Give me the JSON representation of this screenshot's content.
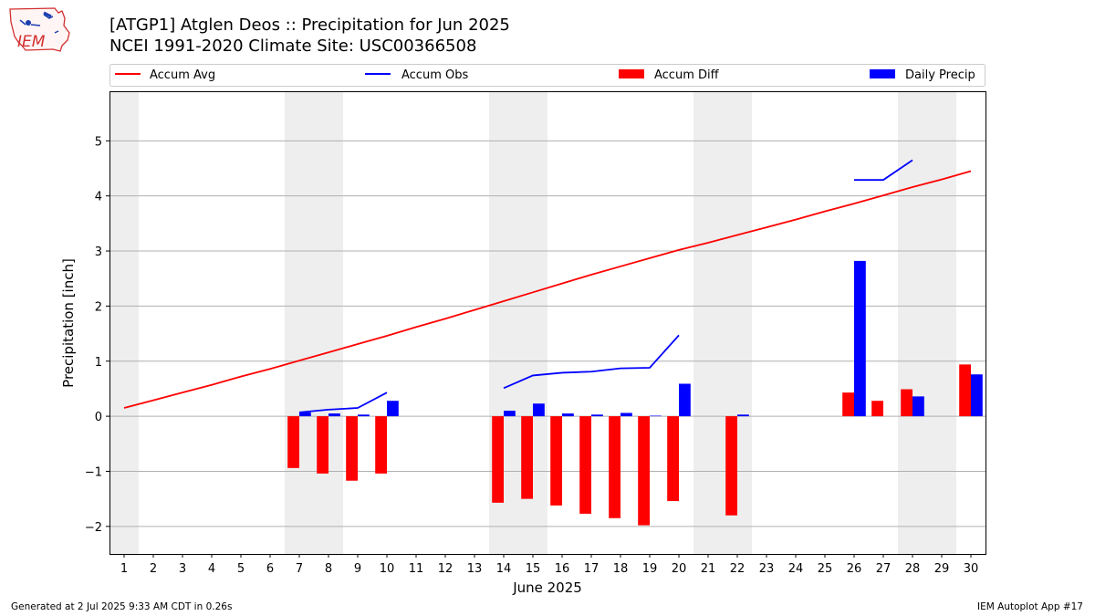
{
  "header": {
    "title_line1": "[ATGP1] Atglen Deos :: Precipitation for Jun 2025",
    "title_line2": "NCEI 1991-2020 Climate Site: USC00366508",
    "logo_text": "IEM"
  },
  "footer": {
    "generated": "Generated at 2 Jul 2025 9:33 AM CDT in 0.26s",
    "app": "IEM Autoplot App #17"
  },
  "colors": {
    "accum_avg": "#ff0000",
    "accum_obs": "#0000ff",
    "accum_diff": "#ff0000",
    "daily_precip": "#0000ff",
    "weekend_shade": "#eeeeee",
    "grid": "#b0b0b0"
  },
  "chart_data": {
    "type": "bar",
    "xlabel": "June 2025",
    "ylabel": "Precipitation [inch]",
    "ylim": [
      -2.5,
      5.9
    ],
    "xlim": [
      0.5,
      30.5
    ],
    "yticks": [
      -2,
      -1,
      0,
      1,
      2,
      3,
      4,
      5
    ],
    "ytick_labels": [
      "−2",
      "−1",
      "0",
      "1",
      "2",
      "3",
      "4",
      "5"
    ],
    "x": [
      1,
      2,
      3,
      4,
      5,
      6,
      7,
      8,
      9,
      10,
      11,
      12,
      13,
      14,
      15,
      16,
      17,
      18,
      19,
      20,
      21,
      22,
      23,
      24,
      25,
      26,
      27,
      28,
      29,
      30
    ],
    "x_tick_labels": [
      "1",
      "2",
      "3",
      "4",
      "5",
      "6",
      "7",
      "8",
      "9",
      "10",
      "11",
      "12",
      "13",
      "14",
      "15",
      "16",
      "17",
      "18",
      "19",
      "20",
      "21",
      "22",
      "23",
      "24",
      "25",
      "26",
      "27",
      "28",
      "29",
      "30"
    ],
    "weekend_days": [
      1,
      7,
      8,
      14,
      15,
      21,
      22,
      28,
      29
    ],
    "grid": "y",
    "legend": {
      "placement": "top",
      "entries": [
        {
          "label": "Accum Avg",
          "kind": "line",
          "color": "#ff0000"
        },
        {
          "label": "Accum Obs",
          "kind": "line",
          "color": "#0000ff"
        },
        {
          "label": "Accum Diff",
          "kind": "bar",
          "color": "#ff0000"
        },
        {
          "label": "Daily Precip",
          "kind": "bar",
          "color": "#0000ff"
        }
      ]
    },
    "series": [
      {
        "name": "Accum Avg",
        "kind": "line",
        "color": "#ff0000",
        "values": [
          0.15,
          0.29,
          0.43,
          0.57,
          0.72,
          0.86,
          1.01,
          1.16,
          1.31,
          1.46,
          1.62,
          1.77,
          1.93,
          2.09,
          2.25,
          2.41,
          2.57,
          2.72,
          2.87,
          3.02,
          3.15,
          3.29,
          3.43,
          3.57,
          3.72,
          3.86,
          4.01,
          4.16,
          4.3,
          4.45
        ]
      },
      {
        "name": "Accum Obs",
        "kind": "line",
        "color": "#0000ff",
        "values": [
          null,
          null,
          null,
          null,
          null,
          null,
          0.07,
          0.12,
          0.15,
          0.43,
          null,
          null,
          null,
          0.51,
          0.74,
          0.79,
          0.81,
          0.87,
          0.88,
          1.47,
          null,
          null,
          null,
          null,
          null,
          4.29,
          4.29,
          4.65,
          null,
          null
        ]
      },
      {
        "name": "Accum Diff",
        "kind": "bar",
        "color": "#ff0000",
        "values": [
          null,
          null,
          null,
          null,
          null,
          null,
          -0.94,
          -1.04,
          -1.17,
          -1.04,
          null,
          null,
          null,
          -1.57,
          -1.5,
          -1.62,
          -1.77,
          -1.85,
          -1.98,
          -1.54,
          null,
          -1.8,
          null,
          null,
          null,
          0.43,
          0.28,
          0.49,
          null,
          0.94
        ]
      },
      {
        "name": "Daily Precip",
        "kind": "bar",
        "color": "#0000ff",
        "values": [
          null,
          null,
          null,
          null,
          null,
          null,
          0.07,
          0.05,
          0.03,
          0.28,
          null,
          null,
          null,
          0.1,
          0.23,
          0.05,
          0.03,
          0.06,
          0.01,
          0.59,
          null,
          0.03,
          null,
          null,
          null,
          2.82,
          null,
          0.36,
          null,
          0.76
        ]
      }
    ]
  }
}
